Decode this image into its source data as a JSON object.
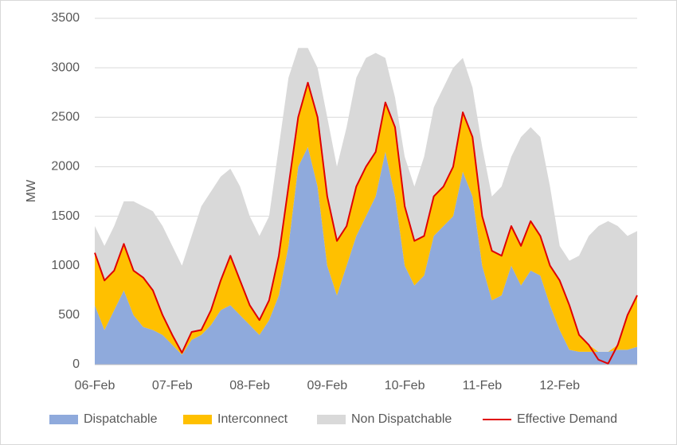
{
  "chart_data": {
    "type": "area",
    "stacked": true,
    "y_label": "MW",
    "categories": [
      "06-Feb",
      null,
      null,
      null,
      null,
      null,
      null,
      null,
      "07-Feb",
      null,
      null,
      null,
      null,
      null,
      null,
      null,
      "08-Feb",
      null,
      null,
      null,
      null,
      null,
      null,
      null,
      "09-Feb",
      null,
      null,
      null,
      null,
      null,
      null,
      null,
      "10-Feb",
      null,
      null,
      null,
      null,
      null,
      null,
      null,
      "11-Feb",
      null,
      null,
      null,
      null,
      null,
      null,
      null,
      "12-Feb",
      null,
      null,
      null,
      null,
      null,
      null,
      null,
      null
    ],
    "ylim": [
      0,
      3500
    ],
    "yticks": [
      0,
      500,
      1000,
      1500,
      2000,
      2500,
      3000,
      3500
    ],
    "grid": true,
    "legend": "bottom",
    "series": [
      {
        "name": "Dispatchable",
        "color": "#8faadc",
        "values": [
          600,
          350,
          550,
          750,
          500,
          380,
          350,
          300,
          200,
          100,
          250,
          300,
          400,
          550,
          600,
          500,
          400,
          300,
          450,
          700,
          1200,
          2000,
          2200,
          1800,
          1000,
          700,
          1000,
          1300,
          1500,
          1700,
          2150,
          1700,
          1000,
          800,
          900,
          1300,
          1400,
          1500,
          1950,
          1700,
          1000,
          650,
          700,
          1000,
          800,
          950,
          900,
          600,
          350,
          150,
          130,
          130,
          130,
          130,
          150,
          150,
          180
        ]
      },
      {
        "name": "Interconnect",
        "color": "#ffc000",
        "values": [
          530,
          500,
          400,
          470,
          450,
          500,
          400,
          200,
          100,
          20,
          80,
          50,
          150,
          300,
          500,
          350,
          200,
          150,
          200,
          400,
          600,
          500,
          650,
          700,
          700,
          550,
          400,
          500,
          500,
          450,
          500,
          700,
          600,
          450,
          400,
          400,
          400,
          500,
          600,
          600,
          500,
          500,
          400,
          400,
          400,
          500,
          400,
          400,
          500,
          450,
          170,
          70,
          0,
          0,
          50,
          350,
          520
        ]
      },
      {
        "name": "Non Dispatchable",
        "color": "#d9d9d9",
        "values": [
          270,
          350,
          450,
          430,
          700,
          720,
          800,
          900,
          900,
          880,
          970,
          1250,
          1200,
          1050,
          880,
          950,
          900,
          850,
          850,
          1100,
          1100,
          700,
          350,
          500,
          800,
          750,
          1000,
          1100,
          1100,
          1000,
          450,
          300,
          500,
          550,
          800,
          900,
          1000,
          1000,
          550,
          500,
          700,
          550,
          700,
          700,
          1100,
          950,
          1000,
          800,
          350,
          450,
          800,
          1100,
          1270,
          1320,
          1200,
          800,
          650
        ]
      },
      {
        "name": "Effective Demand",
        "type": "line",
        "stacked": false,
        "color": "#e00000",
        "values": [
          1130,
          850,
          950,
          1220,
          950,
          880,
          750,
          500,
          300,
          120,
          330,
          350,
          550,
          850,
          1100,
          850,
          600,
          450,
          650,
          1100,
          1800,
          2500,
          2850,
          2500,
          1700,
          1250,
          1400,
          1800,
          2000,
          2150,
          2650,
          2400,
          1600,
          1250,
          1300,
          1700,
          1800,
          2000,
          2550,
          2300,
          1500,
          1150,
          1100,
          1400,
          1200,
          1450,
          1300,
          1000,
          850,
          600,
          300,
          200,
          50,
          10,
          200,
          500,
          700
        ]
      }
    ]
  }
}
